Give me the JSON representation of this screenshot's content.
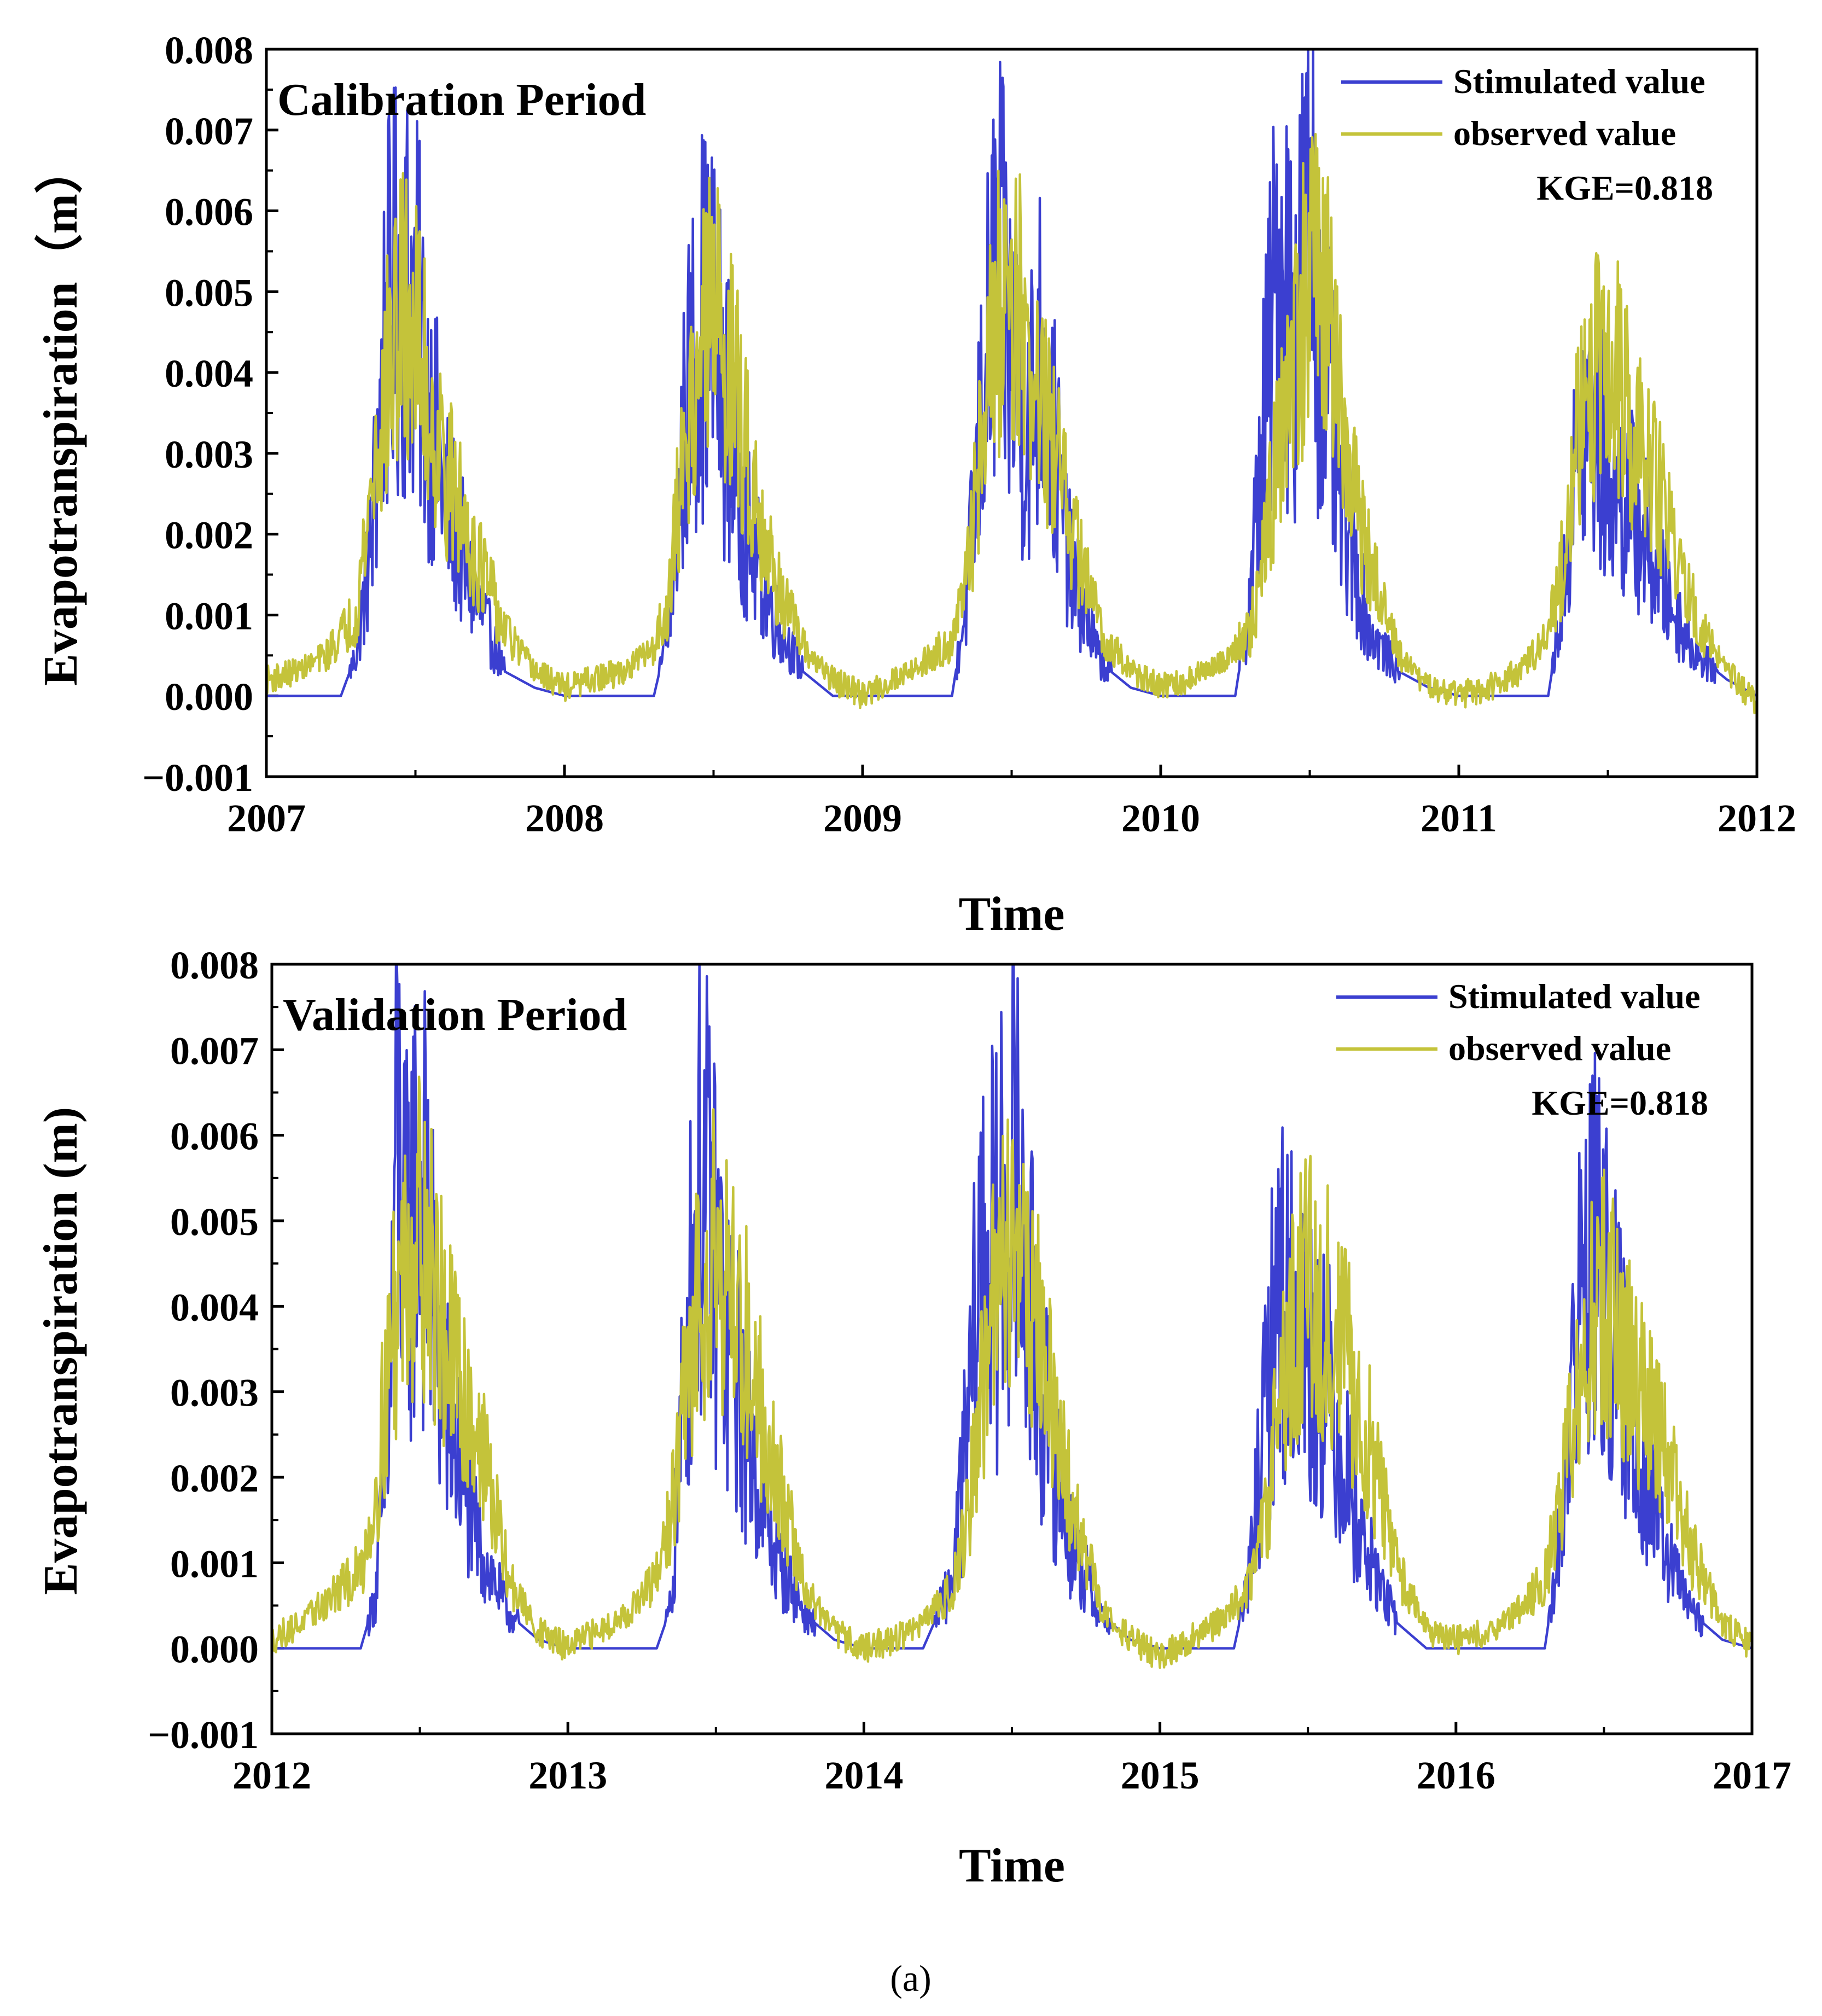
{
  "colors": {
    "simulated": "#3b3fd0",
    "observed": "#c4c33a"
  },
  "caption": "(a)",
  "chart_data": [
    {
      "type": "line",
      "title": "Calibration Period",
      "xlabel": "Time",
      "ylabel": "Evapotranspiration（m）",
      "x_ticks": [
        "2007",
        "2008",
        "2009",
        "2010",
        "2011",
        "2012"
      ],
      "y_ticks": [
        "0.008",
        "0.007",
        "0.006",
        "0.005",
        "0.004",
        "0.003",
        "0.002",
        "0.001",
        "0.000",
        "−0.001"
      ],
      "xlim": [
        2007,
        2012
      ],
      "ylim": [
        -0.001,
        0.008
      ],
      "legend": {
        "placement": "top-right",
        "entries": [
          "Stimulated value",
          "observed value"
        ]
      },
      "annotation": "KGE=0.818",
      "series": [
        {
          "name": "Stimulated value",
          "color": "#3b3fd0",
          "x": [
            2007.0,
            2007.25,
            2007.3,
            2007.35,
            2007.4,
            2007.45,
            2007.5,
            2007.55,
            2007.6,
            2007.7,
            2007.8,
            2007.9,
            2008.0,
            2008.3,
            2008.35,
            2008.4,
            2008.45,
            2008.5,
            2008.55,
            2008.6,
            2008.7,
            2008.8,
            2008.9,
            2009.0,
            2009.3,
            2009.35,
            2009.4,
            2009.45,
            2009.5,
            2009.55,
            2009.6,
            2009.7,
            2009.8,
            2009.9,
            2010.0,
            2010.25,
            2010.3,
            2010.35,
            2010.4,
            2010.45,
            2010.5,
            2010.55,
            2010.6,
            2010.7,
            2010.8,
            2010.9,
            2011.0,
            2011.3,
            2011.35,
            2011.4,
            2011.45,
            2011.5,
            2011.55,
            2011.6,
            2011.7,
            2011.8,
            2011.9,
            2012.0
          ],
          "y": [
            0.0,
            0.0,
            0.0005,
            0.0018,
            0.0045,
            0.0052,
            0.0048,
            0.0035,
            0.0025,
            0.0012,
            0.0003,
            0.0001,
            0.0,
            0.0,
            0.0008,
            0.0032,
            0.0047,
            0.0045,
            0.0034,
            0.0022,
            0.001,
            0.0003,
            0.0,
            0.0,
            0.0,
            0.0012,
            0.0035,
            0.0054,
            0.0042,
            0.0033,
            0.0043,
            0.0015,
            0.0004,
            0.0001,
            0.0,
            0.0,
            0.0012,
            0.0036,
            0.0055,
            0.0045,
            0.006,
            0.004,
            0.0025,
            0.0008,
            0.0003,
            0.0001,
            0.0,
            0.0,
            0.0012,
            0.0031,
            0.0033,
            0.0028,
            0.0025,
            0.0022,
            0.0012,
            0.0005,
            0.0002,
            0.0
          ]
        },
        {
          "name": "observed value",
          "color": "#c4c33a",
          "x": [
            2007.0,
            2007.1,
            2007.2,
            2007.3,
            2007.35,
            2007.4,
            2007.45,
            2007.5,
            2007.55,
            2007.6,
            2007.7,
            2007.8,
            2007.9,
            2008.0,
            2008.1,
            2008.2,
            2008.3,
            2008.35,
            2008.4,
            2008.45,
            2008.5,
            2008.55,
            2008.6,
            2008.7,
            2008.8,
            2008.9,
            2009.0,
            2009.1,
            2009.2,
            2009.3,
            2009.35,
            2009.4,
            2009.45,
            2009.5,
            2009.55,
            2009.6,
            2009.7,
            2009.8,
            2009.9,
            2010.0,
            2010.1,
            2010.2,
            2010.3,
            2010.35,
            2010.4,
            2010.45,
            2010.5,
            2010.55,
            2010.6,
            2010.7,
            2010.8,
            2010.9,
            2011.0,
            2011.1,
            2011.2,
            2011.3,
            2011.35,
            2011.4,
            2011.45,
            2011.5,
            2011.55,
            2011.6,
            2011.7,
            2011.8,
            2011.9,
            2012.0
          ],
          "y": [
            0.0002,
            0.0003,
            0.0005,
            0.001,
            0.0025,
            0.0038,
            0.0047,
            0.0045,
            0.0035,
            0.0028,
            0.0018,
            0.0008,
            0.0003,
            0.0001,
            0.0002,
            0.0003,
            0.0006,
            0.0012,
            0.003,
            0.0042,
            0.0048,
            0.0042,
            0.0032,
            0.0015,
            0.0006,
            0.0002,
            0.0,
            0.0002,
            0.0004,
            0.0007,
            0.0014,
            0.0033,
            0.0046,
            0.0053,
            0.0041,
            0.0036,
            0.0021,
            0.0008,
            0.0003,
            0.0001,
            0.0002,
            0.0004,
            0.0008,
            0.0018,
            0.0033,
            0.0044,
            0.0052,
            0.0049,
            0.0035,
            0.0016,
            0.0005,
            0.0001,
            0.0,
            0.0001,
            0.0003,
            0.0007,
            0.0017,
            0.0032,
            0.0039,
            0.0043,
            0.0037,
            0.0031,
            0.0022,
            0.0009,
            0.0003,
            -0.0001
          ]
        }
      ]
    },
    {
      "type": "line",
      "title": "Validation Period",
      "xlabel": "Time",
      "ylabel": "Evapotranspiration (m)",
      "x_ticks": [
        "2012",
        "2013",
        "2014",
        "2015",
        "2016",
        "2017"
      ],
      "y_ticks": [
        "0.008",
        "0.007",
        "0.006",
        "0.005",
        "0.004",
        "0.003",
        "0.002",
        "0.001",
        "0.000",
        "−0.001"
      ],
      "xlim": [
        2012,
        2017
      ],
      "ylim": [
        -0.001,
        0.008
      ],
      "legend": {
        "placement": "top-right",
        "entries": [
          "Stimulated value",
          "observed value"
        ]
      },
      "annotation": "KGE=0.818",
      "series": [
        {
          "name": "Stimulated value",
          "color": "#3b3fd0",
          "x": [
            2012.0,
            2012.3,
            2012.35,
            2012.4,
            2012.42,
            2012.45,
            2012.5,
            2012.55,
            2012.6,
            2012.7,
            2012.8,
            2012.9,
            2013.0,
            2013.3,
            2013.35,
            2013.4,
            2013.45,
            2013.5,
            2013.55,
            2013.6,
            2013.7,
            2013.8,
            2013.9,
            2014.0,
            2014.2,
            2014.3,
            2014.35,
            2014.4,
            2014.45,
            2014.5,
            2014.55,
            2014.6,
            2014.7,
            2014.8,
            2014.9,
            2015.0,
            2015.25,
            2015.3,
            2015.35,
            2015.4,
            2015.45,
            2015.5,
            2015.55,
            2015.6,
            2015.7,
            2015.8,
            2015.9,
            2016.0,
            2016.3,
            2016.35,
            2016.4,
            2016.45,
            2016.5,
            2016.55,
            2016.6,
            2016.7,
            2016.8,
            2016.9,
            2017.0
          ],
          "y": [
            0.0,
            0.0,
            0.0006,
            0.0028,
            0.0065,
            0.0045,
            0.0057,
            0.0038,
            0.0026,
            0.0012,
            0.0004,
            0.0001,
            0.0,
            0.0,
            0.0005,
            0.0036,
            0.0055,
            0.0045,
            0.0035,
            0.0026,
            0.0011,
            0.0004,
            0.0001,
            0.0,
            0.0,
            0.0008,
            0.0025,
            0.0048,
            0.0045,
            0.0059,
            0.0042,
            0.003,
            0.0012,
            0.0004,
            0.0001,
            0.0,
            0.0,
            0.0008,
            0.0025,
            0.0043,
            0.0038,
            0.0035,
            0.0033,
            0.0025,
            0.0011,
            0.0003,
            0.0,
            0.0,
            0.0,
            0.0012,
            0.0035,
            0.0048,
            0.0042,
            0.0033,
            0.0026,
            0.0012,
            0.0004,
            0.0001,
            0.0
          ]
        },
        {
          "name": "observed value",
          "color": "#c4c33a",
          "x": [
            2012.0,
            2012.1,
            2012.2,
            2012.3,
            2012.35,
            2012.4,
            2012.45,
            2012.5,
            2012.55,
            2012.6,
            2012.7,
            2012.8,
            2012.9,
            2013.0,
            2013.1,
            2013.2,
            2013.3,
            2013.35,
            2013.4,
            2013.45,
            2013.5,
            2013.55,
            2013.6,
            2013.7,
            2013.8,
            2013.9,
            2014.0,
            2014.1,
            2014.2,
            2014.3,
            2014.35,
            2014.4,
            2014.45,
            2014.5,
            2014.55,
            2014.6,
            2014.7,
            2014.8,
            2014.9,
            2015.0,
            2015.1,
            2015.2,
            2015.3,
            2015.35,
            2015.4,
            2015.45,
            2015.5,
            2015.55,
            2015.6,
            2015.7,
            2015.8,
            2015.9,
            2016.0,
            2016.1,
            2016.2,
            2016.3,
            2016.35,
            2016.4,
            2016.45,
            2016.5,
            2016.55,
            2016.6,
            2016.7,
            2016.8,
            2016.9,
            2017.0
          ],
          "y": [
            0.0001,
            0.0003,
            0.0006,
            0.0009,
            0.0018,
            0.0035,
            0.0046,
            0.005,
            0.0042,
            0.0034,
            0.0025,
            0.0008,
            0.0002,
            0.0,
            0.0002,
            0.0004,
            0.0008,
            0.0016,
            0.003,
            0.0043,
            0.0049,
            0.0041,
            0.0036,
            0.0021,
            0.0007,
            0.0002,
            0.0,
            0.0001,
            0.0003,
            0.0007,
            0.0015,
            0.0031,
            0.0042,
            0.005,
            0.0045,
            0.0035,
            0.0017,
            0.0005,
            0.0001,
            -0.0001,
            0.0001,
            0.0003,
            0.0007,
            0.0014,
            0.0027,
            0.0037,
            0.0044,
            0.004,
            0.0037,
            0.0025,
            0.001,
            0.0002,
            0.0001,
            0.0002,
            0.0004,
            0.0008,
            0.0016,
            0.0028,
            0.0037,
            0.0041,
            0.0036,
            0.0032,
            0.0023,
            0.0011,
            0.0003,
            0.0
          ]
        }
      ]
    }
  ]
}
